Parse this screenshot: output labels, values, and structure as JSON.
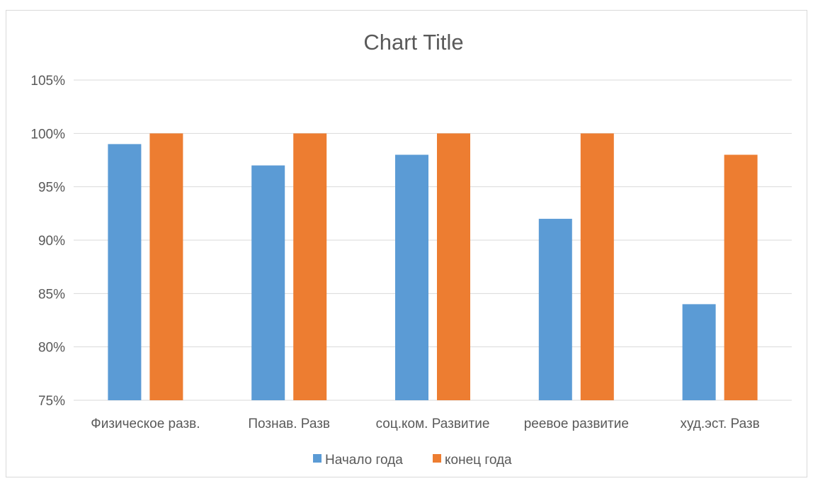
{
  "chart_data": {
    "type": "bar",
    "title": "Chart Title",
    "categories": [
      "Физическое разв.",
      "Познав. Разв",
      "соц.ком. Развитие",
      "реевое развитие",
      "худ.эст. Разв"
    ],
    "series": [
      {
        "name": "Начало года",
        "values": [
          99,
          97,
          98,
          92,
          84
        ],
        "color": "#5b9bd5"
      },
      {
        "name": "конец года",
        "values": [
          100,
          100,
          100,
          100,
          98
        ],
        "color": "#ed7d31"
      }
    ],
    "ylim": [
      75,
      105
    ],
    "ytick_step": 5,
    "ytick_labels": [
      "75%",
      "80%",
      "85%",
      "90%",
      "95%",
      "100%",
      "105%"
    ],
    "grid": true,
    "legend": "bottom"
  }
}
